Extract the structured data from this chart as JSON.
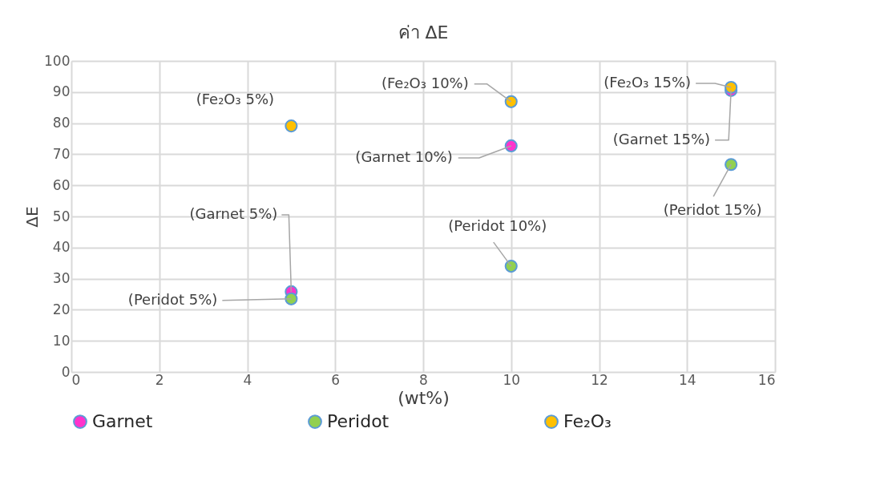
{
  "chart_data": {
    "type": "scatter",
    "title": "ค่า ΔE",
    "xlabel": "(wt%)",
    "ylabel": "ΔE",
    "x": [
      5,
      10,
      15
    ],
    "series": [
      {
        "name": "Garnet",
        "color": "#ff33cc",
        "values": [
          25.8,
          72.7,
          90.5
        ]
      },
      {
        "name": "Peridot",
        "color": "#92d050",
        "values": [
          23.5,
          34,
          66.7
        ]
      },
      {
        "name": "Fe₂O₃",
        "color": "#ffc000",
        "values": [
          79.1,
          86.9,
          91.5
        ]
      }
    ],
    "annotations": [
      {
        "text": "(Fe₂O₃ 5%)",
        "x": 5,
        "y": 79.1
      },
      {
        "text": "(Garnet 5%)",
        "x": 5,
        "y": 25.8
      },
      {
        "text": "(Peridot 5%)",
        "x": 5,
        "y": 23.5
      },
      {
        "text": "(Fe₂O₃ 10%)",
        "x": 10,
        "y": 86.9
      },
      {
        "text": "(Garnet 10%)",
        "x": 10,
        "y": 72.7
      },
      {
        "text": "(Peridot 10%)",
        "x": 10,
        "y": 34
      },
      {
        "text": "(Fe₂O₃ 15%)",
        "x": 15,
        "y": 91.5
      },
      {
        "text": "(Garnet 15%)",
        "x": 15,
        "y": 90.5
      },
      {
        "text": "(Peridot 15%)",
        "x": 15,
        "y": 66.7
      }
    ],
    "xlim": [
      0,
      16
    ],
    "xticks": [
      0,
      2,
      4,
      6,
      8,
      10,
      12,
      14,
      16
    ],
    "ylim": [
      0,
      100
    ],
    "yticks": [
      0,
      10,
      20,
      30,
      40,
      50,
      60,
      70,
      80,
      90,
      100
    ],
    "grid": true,
    "legend": "bottom",
    "marker": "circle"
  }
}
